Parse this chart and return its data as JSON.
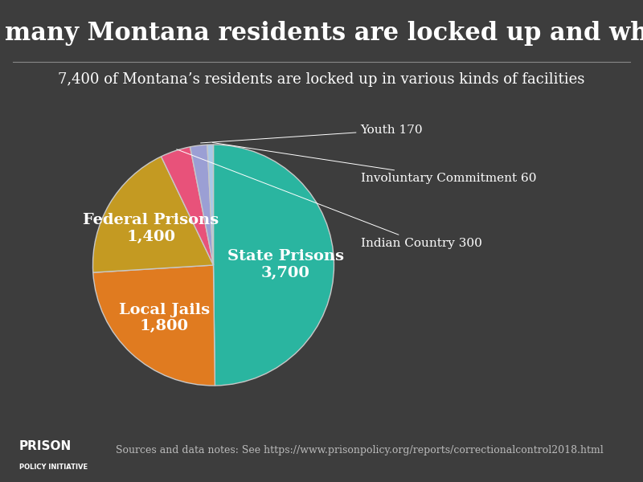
{
  "title": "How many Montana residents are locked up and where?",
  "subtitle": "7,400 of Montana’s residents are locked up in various kinds of facilities",
  "source": "Sources and data notes: See https://www.prisonpolicy.org/reports/correctionalcontrol2018.html",
  "slices": [
    {
      "label": "State Prisons",
      "value": 3700,
      "color": "#2ab5a0"
    },
    {
      "label": "Local Jails",
      "value": 1800,
      "color": "#e07b20"
    },
    {
      "label": "Federal Prisons",
      "value": 1400,
      "color": "#c49a22"
    },
    {
      "label": "Indian Country",
      "value": 300,
      "color": "#e8527a"
    },
    {
      "label": "Youth",
      "value": 170,
      "color": "#9b9fd4"
    },
    {
      "label": "Involuntary Commitment",
      "value": 60,
      "color": "#a8c8e8"
    }
  ],
  "bg_color": "#3d3d3d",
  "text_color": "#ffffff",
  "pie_edge_color": "#c8c8c8",
  "title_fontsize": 22,
  "subtitle_fontsize": 13,
  "label_fontsize": 14,
  "small_label_fontsize": 11,
  "source_fontsize": 9
}
